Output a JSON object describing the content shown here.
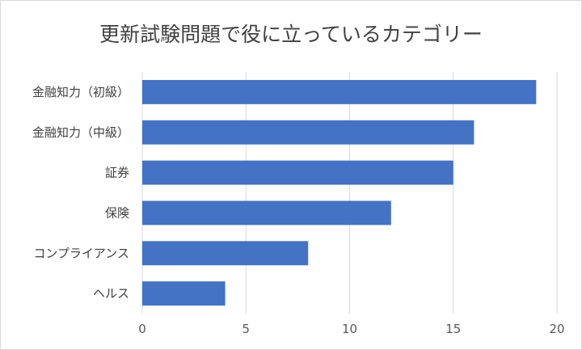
{
  "chart_data": {
    "type": "bar",
    "orientation": "horizontal",
    "title": "更新試験問題で役に立っているカテゴリー",
    "categories": [
      "金融知力（初級）",
      "金融知力（中級）",
      "証券",
      "保険",
      "コンプライアンス",
      "ヘルス"
    ],
    "values": [
      19,
      16,
      15,
      12,
      8,
      4
    ],
    "xlim": [
      0,
      20
    ],
    "xticks": [
      0,
      5,
      10,
      15,
      20
    ],
    "grid": true,
    "legend": "none",
    "bar_color": "#4472c4",
    "xlabel": "",
    "ylabel": ""
  }
}
